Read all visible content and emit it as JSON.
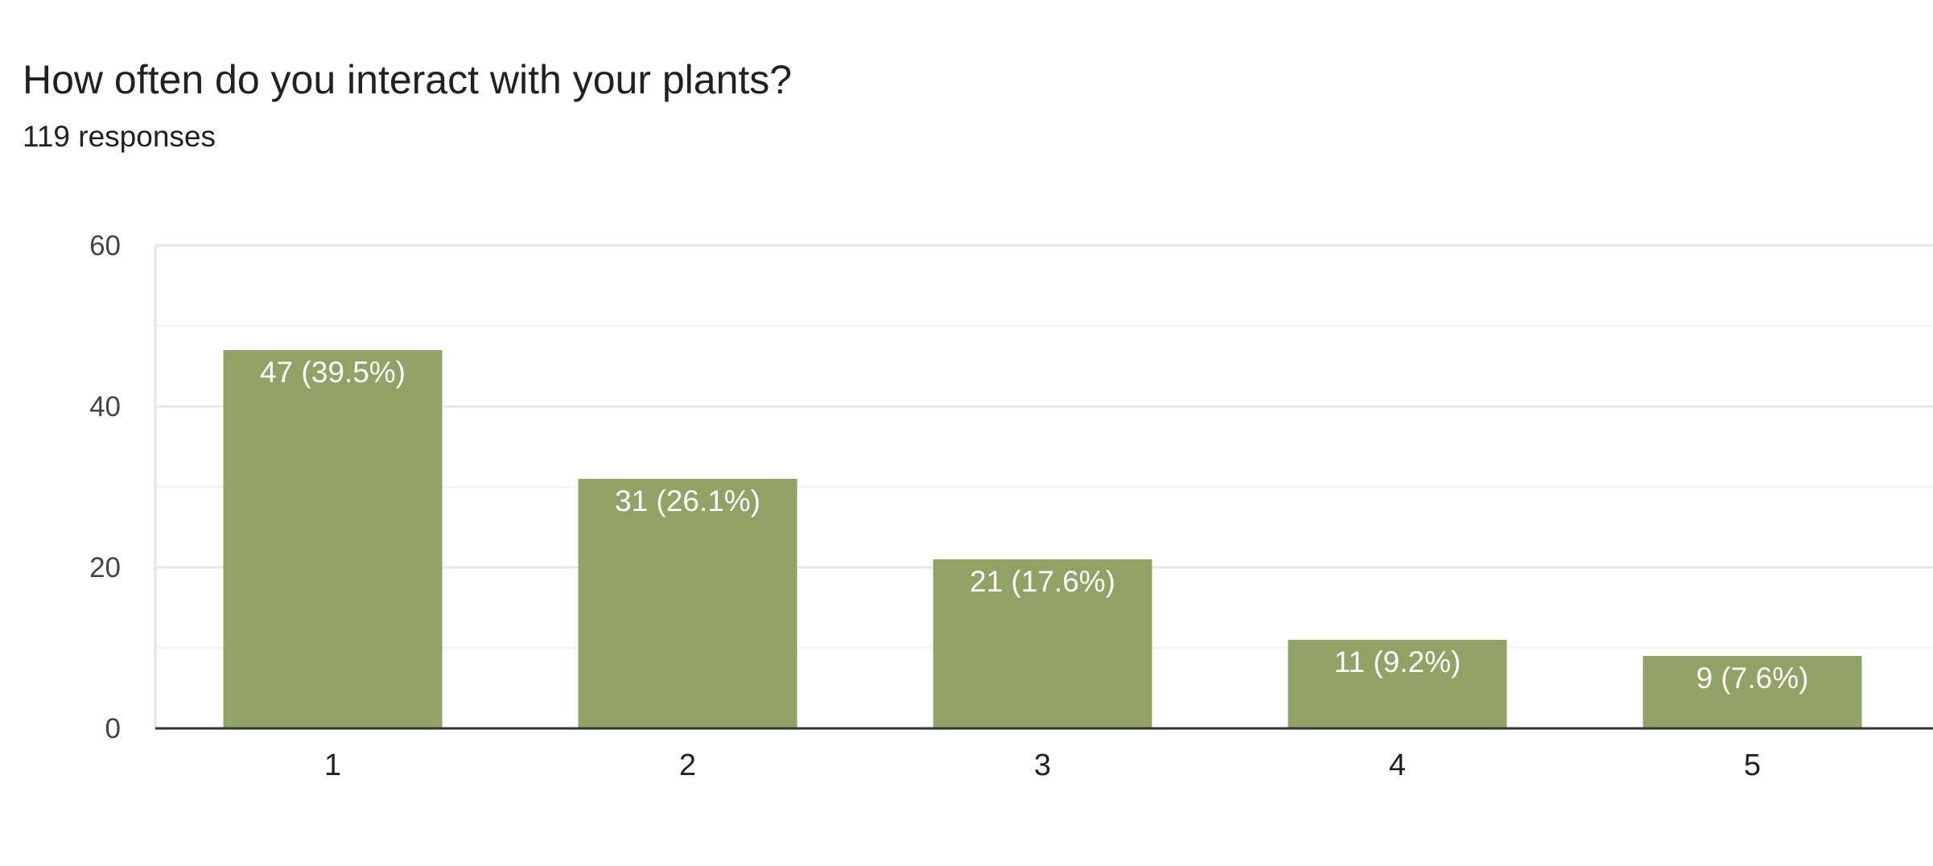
{
  "question": {
    "title": "How often do you interact with your plants?",
    "responses": "119 responses"
  },
  "colors": {
    "bar": "#91a264",
    "grid_major": "#e6e6e6",
    "grid_minor": "#f3f3f3",
    "axis": "#333333"
  },
  "chart_data": {
    "type": "bar",
    "title": "How often do you interact with your plants?",
    "subtitle": "119 responses",
    "categories": [
      "1",
      "2",
      "3",
      "4",
      "5"
    ],
    "values": [
      47,
      31,
      21,
      11,
      9
    ],
    "data_labels": [
      "47 (39.5%)",
      "31 (26.1%)",
      "21 (17.6%)",
      "11 (9.2%)",
      "9 (7.6%)"
    ],
    "yticks": [
      0,
      20,
      40,
      60
    ],
    "ylim": [
      0,
      60
    ],
    "xlabel": "",
    "ylabel": "",
    "grid": true,
    "legend": "none"
  }
}
